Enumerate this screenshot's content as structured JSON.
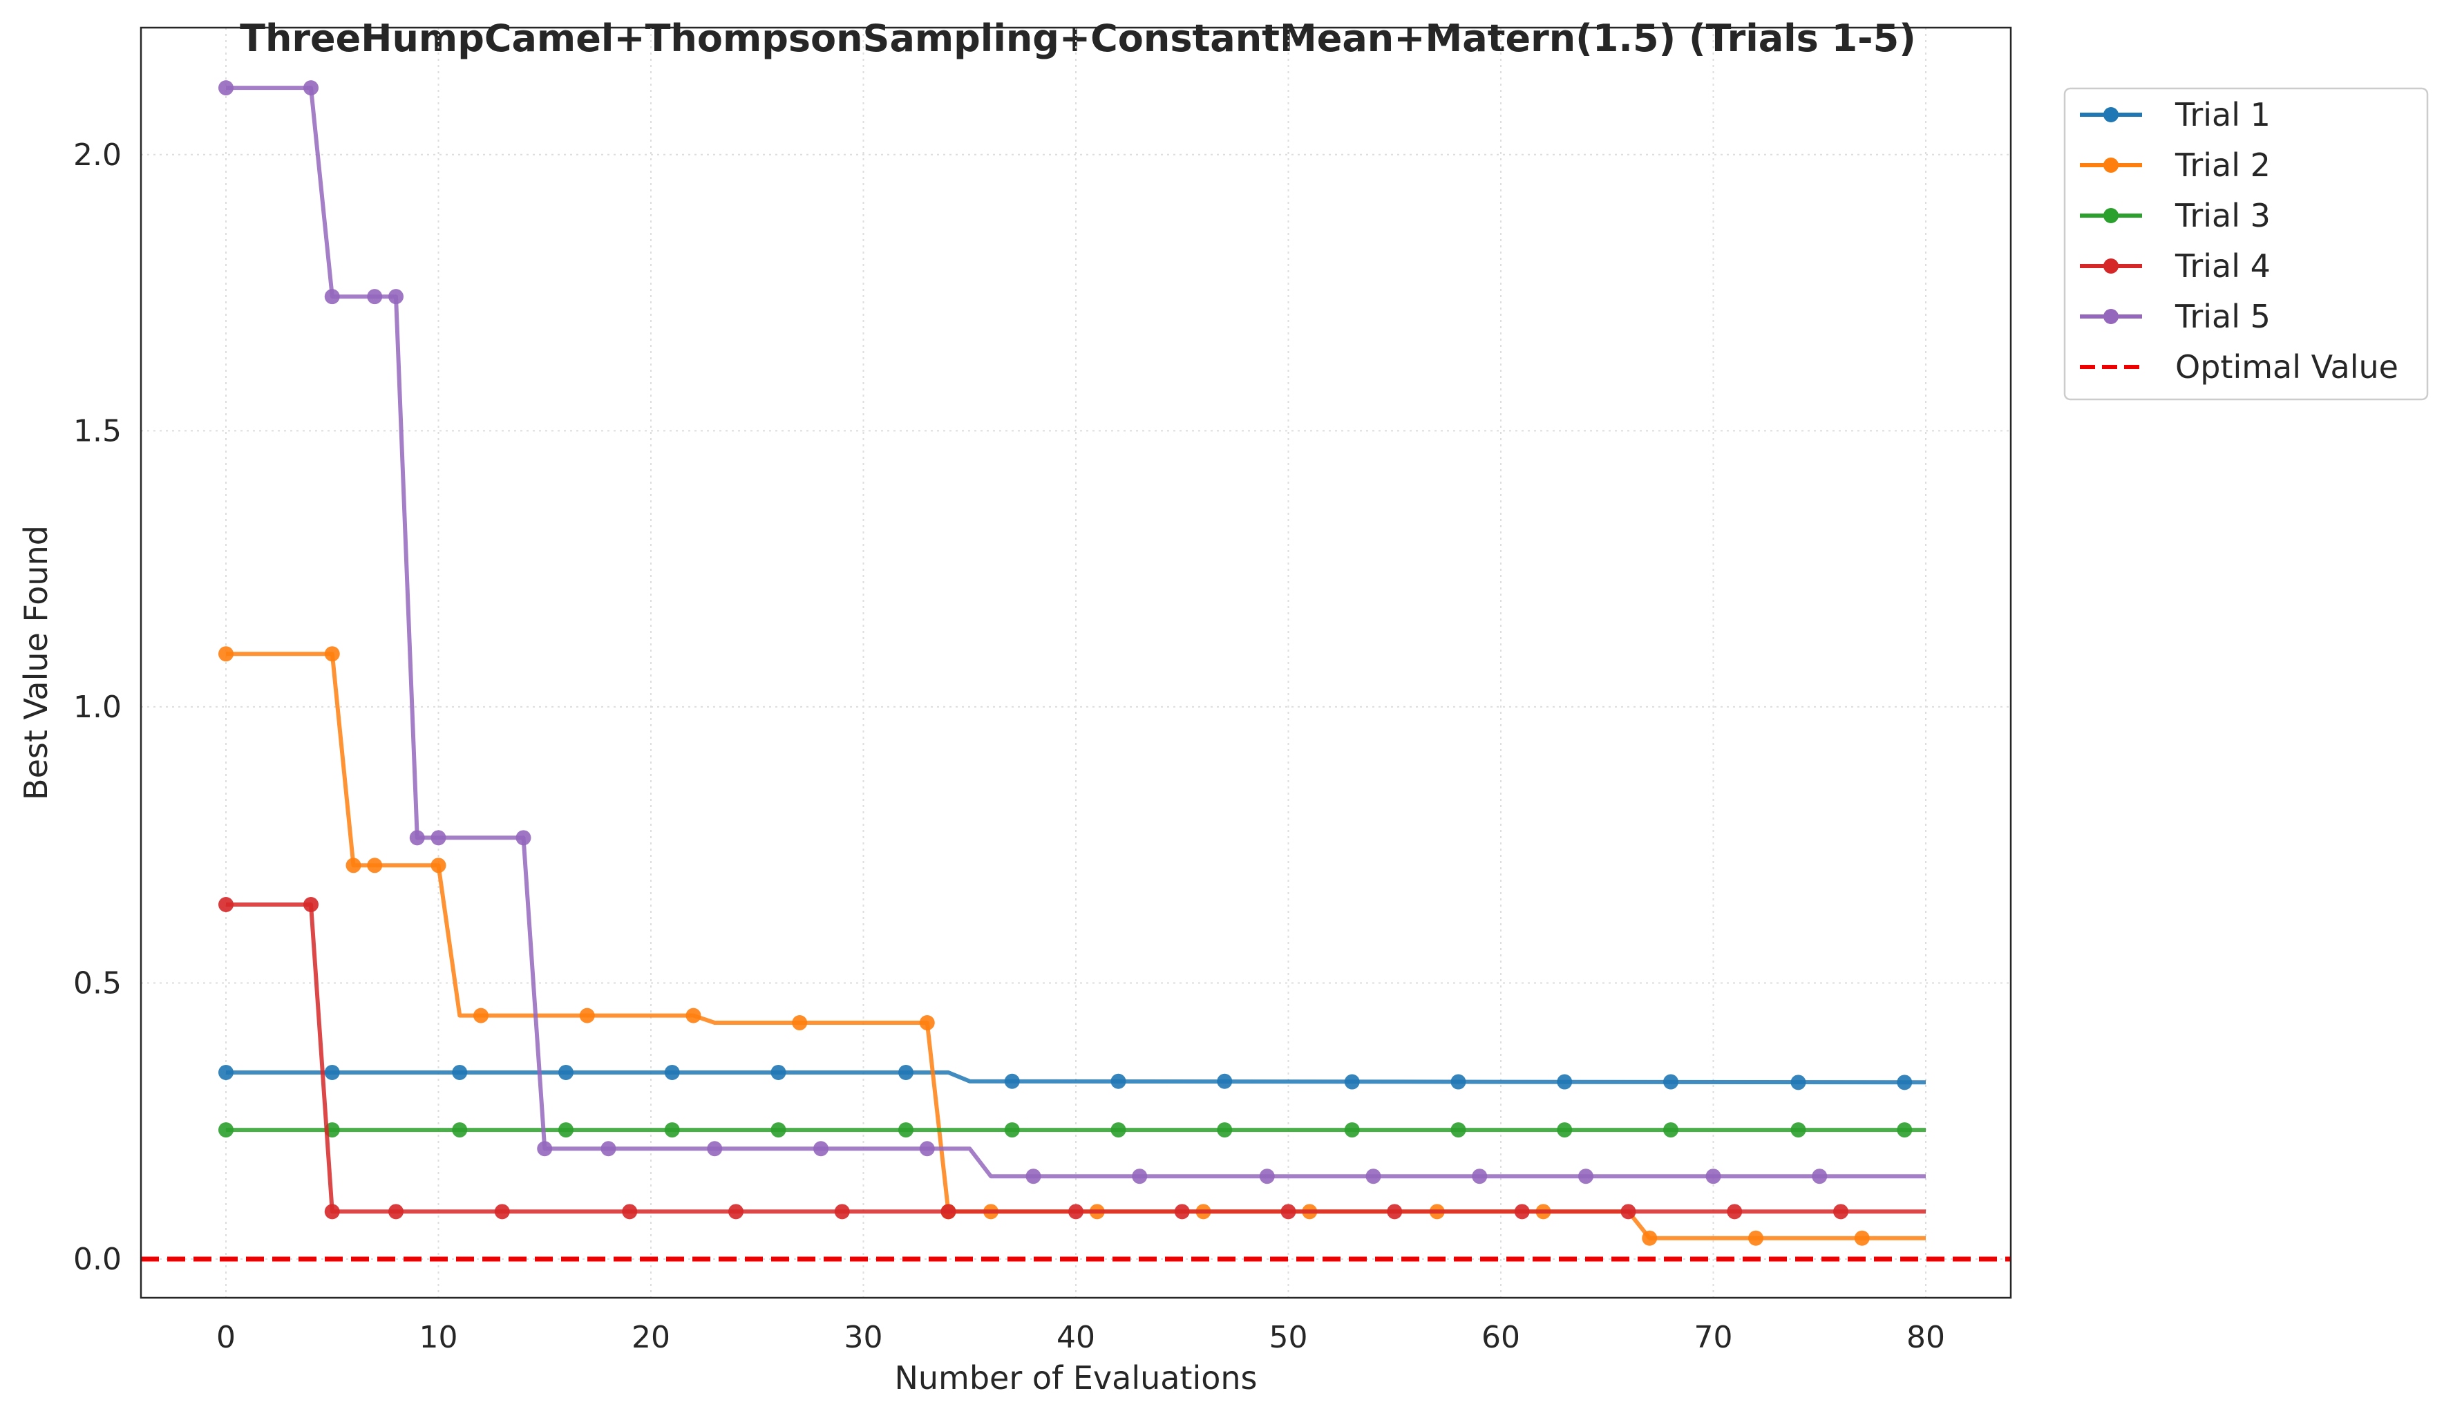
{
  "chart_data": {
    "type": "line",
    "title": "ThreeHumpCamel+ThompsonSampling+ConstantMean+Matern(1.5) (Trials 1-5)",
    "xlabel": "Number of Evaluations",
    "ylabel": "Best Value Found",
    "xlim": [
      -4,
      84
    ],
    "ylim": [
      -0.07,
      2.23
    ],
    "xticks": [
      0,
      10,
      20,
      30,
      40,
      50,
      60,
      70,
      80
    ],
    "xtick_labels": [
      "0",
      "10",
      "20",
      "30",
      "40",
      "50",
      "60",
      "70",
      "80"
    ],
    "yticks": [
      0.0,
      0.5,
      1.0,
      1.5,
      2.0
    ],
    "ytick_labels": [
      "0.0",
      "0.5",
      "1.0",
      "1.5",
      "2.0"
    ],
    "grid": true,
    "legend_position": "outside-top-right",
    "optimal_value": 0.0,
    "optimal_label": "Optimal Value",
    "optimal_color": "#ee0000",
    "series": [
      {
        "name": "Trial 1",
        "color": "#1f77b4",
        "x": [
          0,
          34,
          35,
          80
        ],
        "y": [
          0.338,
          0.338,
          0.322,
          0.32
        ],
        "markers_x": [
          0,
          5,
          11,
          16,
          21,
          26,
          32,
          37,
          42,
          47,
          53,
          58,
          63,
          68,
          74,
          79
        ],
        "markers_y": [
          0.338,
          0.338,
          0.338,
          0.338,
          0.338,
          0.338,
          0.338,
          0.322,
          0.322,
          0.322,
          0.321,
          0.321,
          0.321,
          0.321,
          0.32,
          0.32
        ]
      },
      {
        "name": "Trial 2",
        "color": "#ff7f0e",
        "x": [
          0,
          5,
          6,
          10,
          11,
          22,
          23,
          33,
          34,
          66,
          67,
          80
        ],
        "y": [
          1.096,
          1.096,
          0.713,
          0.713,
          0.441,
          0.441,
          0.428,
          0.428,
          0.086,
          0.086,
          0.038,
          0.038
        ],
        "markers_x": [
          0,
          5,
          6,
          7,
          10,
          12,
          17,
          22,
          27,
          33,
          34,
          36,
          41,
          46,
          51,
          57,
          62,
          67,
          72,
          77
        ],
        "markers_y": [
          1.096,
          1.096,
          0.713,
          0.713,
          0.713,
          0.441,
          0.441,
          0.441,
          0.428,
          0.428,
          0.086,
          0.086,
          0.086,
          0.086,
          0.086,
          0.086,
          0.086,
          0.038,
          0.038,
          0.038
        ]
      },
      {
        "name": "Trial 3",
        "color": "#2ca02c",
        "x": [
          0,
          80
        ],
        "y": [
          0.234,
          0.234
        ],
        "markers_x": [
          0,
          5,
          11,
          16,
          21,
          26,
          32,
          37,
          42,
          47,
          53,
          58,
          63,
          68,
          74,
          79
        ],
        "markers_y": [
          0.234,
          0.234,
          0.234,
          0.234,
          0.234,
          0.234,
          0.234,
          0.234,
          0.234,
          0.234,
          0.234,
          0.234,
          0.234,
          0.234,
          0.234,
          0.234
        ]
      },
      {
        "name": "Trial 4",
        "color": "#d62728",
        "x": [
          0,
          4,
          5,
          80
        ],
        "y": [
          0.642,
          0.642,
          0.086,
          0.086
        ],
        "markers_x": [
          0,
          4,
          5,
          8,
          13,
          19,
          24,
          29,
          34,
          40,
          45,
          50,
          55,
          61,
          66,
          71,
          76
        ],
        "markers_y": [
          0.642,
          0.642,
          0.086,
          0.086,
          0.086,
          0.086,
          0.086,
          0.086,
          0.086,
          0.086,
          0.086,
          0.086,
          0.086,
          0.086,
          0.086,
          0.086,
          0.086
        ]
      },
      {
        "name": "Trial 5",
        "color": "#9467bd",
        "x": [
          0,
          4,
          5,
          8,
          9,
          14,
          15,
          35,
          36,
          80
        ],
        "y": [
          2.121,
          2.121,
          1.743,
          1.743,
          0.763,
          0.763,
          0.2,
          0.2,
          0.15,
          0.15
        ],
        "markers_x": [
          0,
          4,
          5,
          7,
          8,
          9,
          10,
          14,
          15,
          18,
          23,
          28,
          33,
          38,
          43,
          49,
          54,
          59,
          64,
          70,
          75
        ],
        "markers_y": [
          2.121,
          2.121,
          1.743,
          1.743,
          1.743,
          0.763,
          0.763,
          0.763,
          0.2,
          0.2,
          0.2,
          0.2,
          0.2,
          0.15,
          0.15,
          0.15,
          0.15,
          0.15,
          0.15,
          0.15,
          0.15
        ]
      }
    ]
  }
}
